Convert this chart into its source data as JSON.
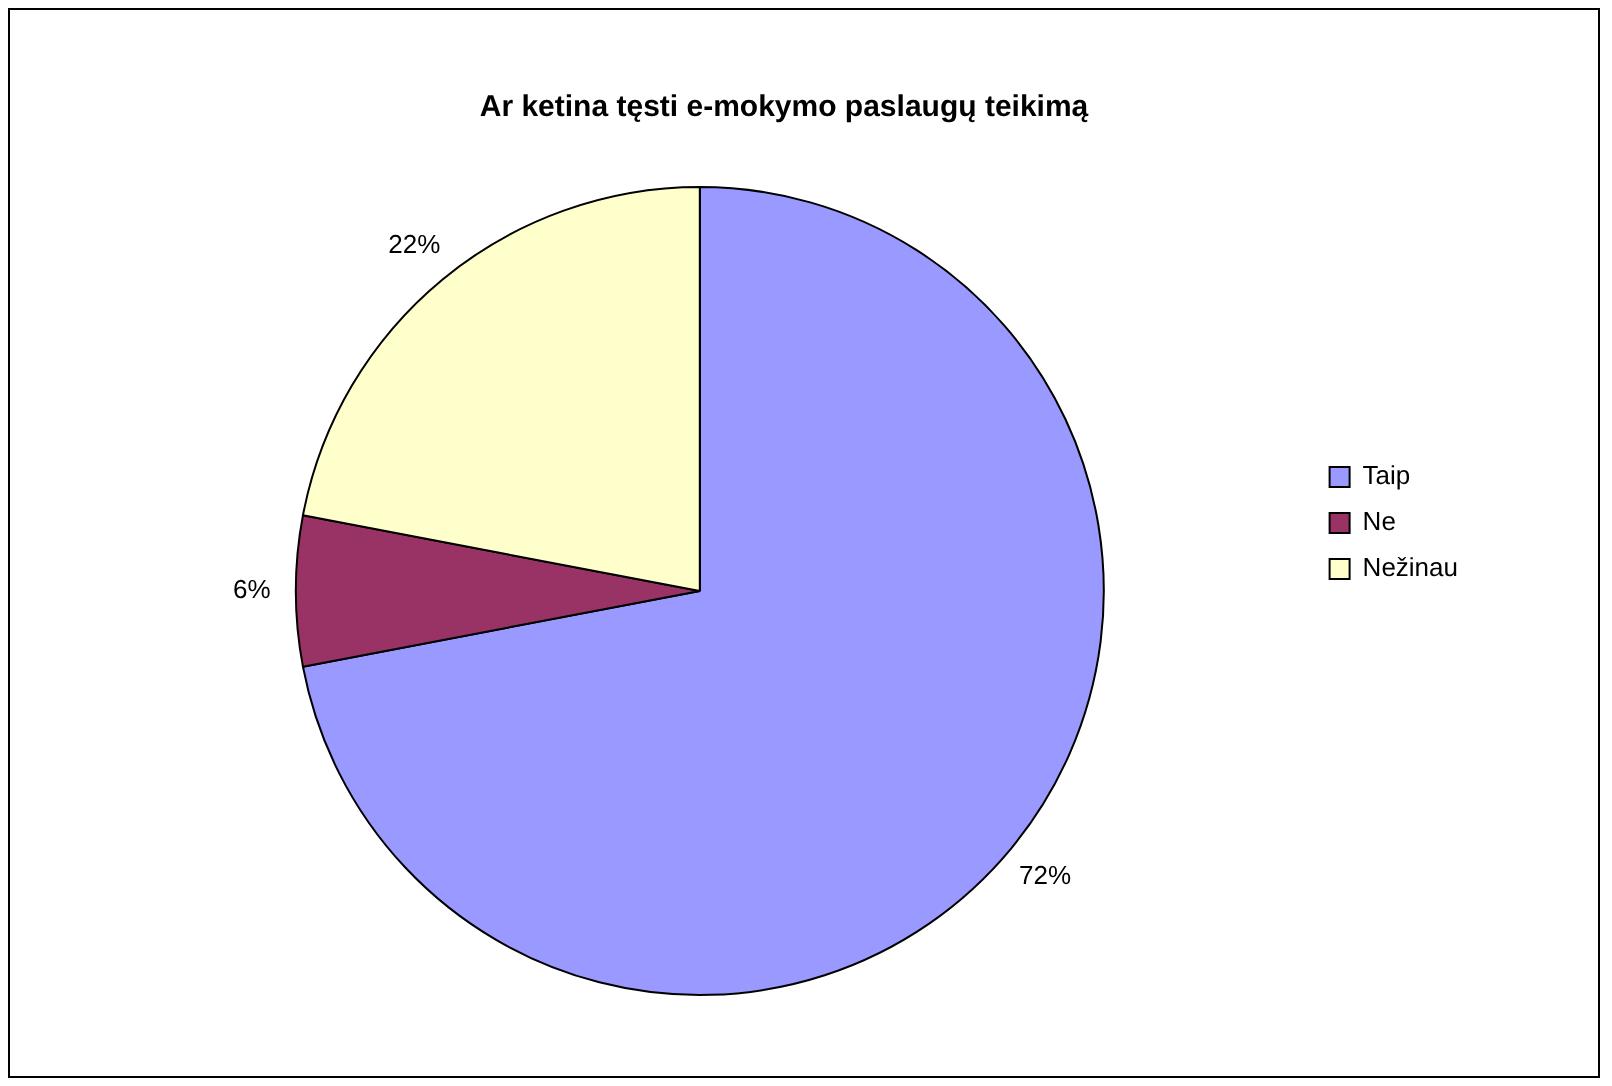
{
  "chart_data": {
    "type": "pie",
    "title": "Ar ketina tęsti e-mokymo paslaugų teikimą",
    "categories": [
      "Taip",
      "Ne",
      "Nežinau"
    ],
    "values": [
      72,
      6,
      22
    ],
    "colors": [
      "#9999ff",
      "#993366",
      "#ffffcc"
    ],
    "value_labels": [
      "72%",
      "6%",
      "22%"
    ],
    "legend": "right"
  }
}
